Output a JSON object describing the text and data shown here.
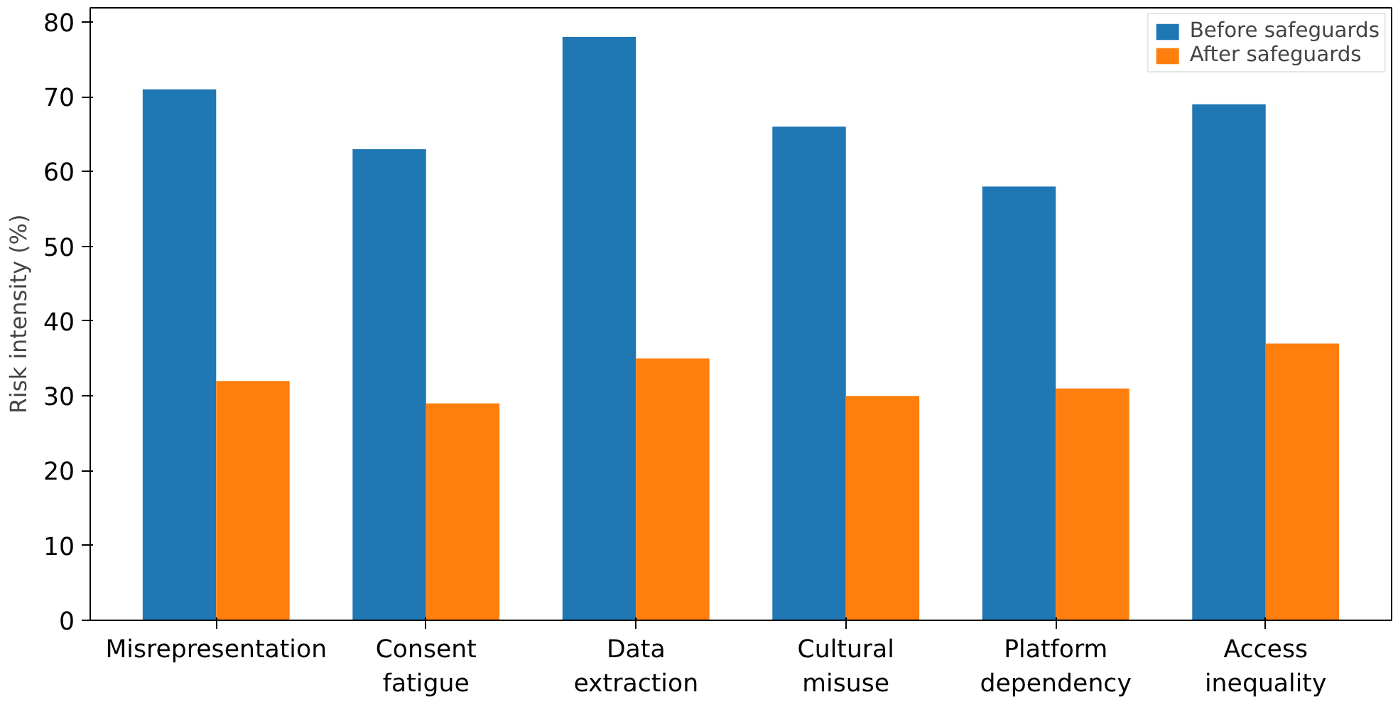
{
  "chart_data": {
    "type": "bar",
    "categories": [
      "Misrepresentation",
      "Consent\nfatigue",
      "Data\nextraction",
      "Cultural\nmisuse",
      "Platform\ndependency",
      "Access\ninequality"
    ],
    "series": [
      {
        "name": "Before safeguards",
        "color": "#1f77b4",
        "values": [
          71,
          63,
          78,
          66,
          58,
          69
        ]
      },
      {
        "name": "After safeguards",
        "color": "#ff7f0e",
        "values": [
          32,
          29,
          35,
          30,
          31,
          37
        ]
      }
    ],
    "ylabel": "Risk intensity (%)",
    "ylim": [
      0,
      81.9
    ],
    "yticks": [
      0,
      10,
      20,
      30,
      40,
      50,
      60,
      70,
      80
    ],
    "grid": false,
    "legend": "top right"
  }
}
